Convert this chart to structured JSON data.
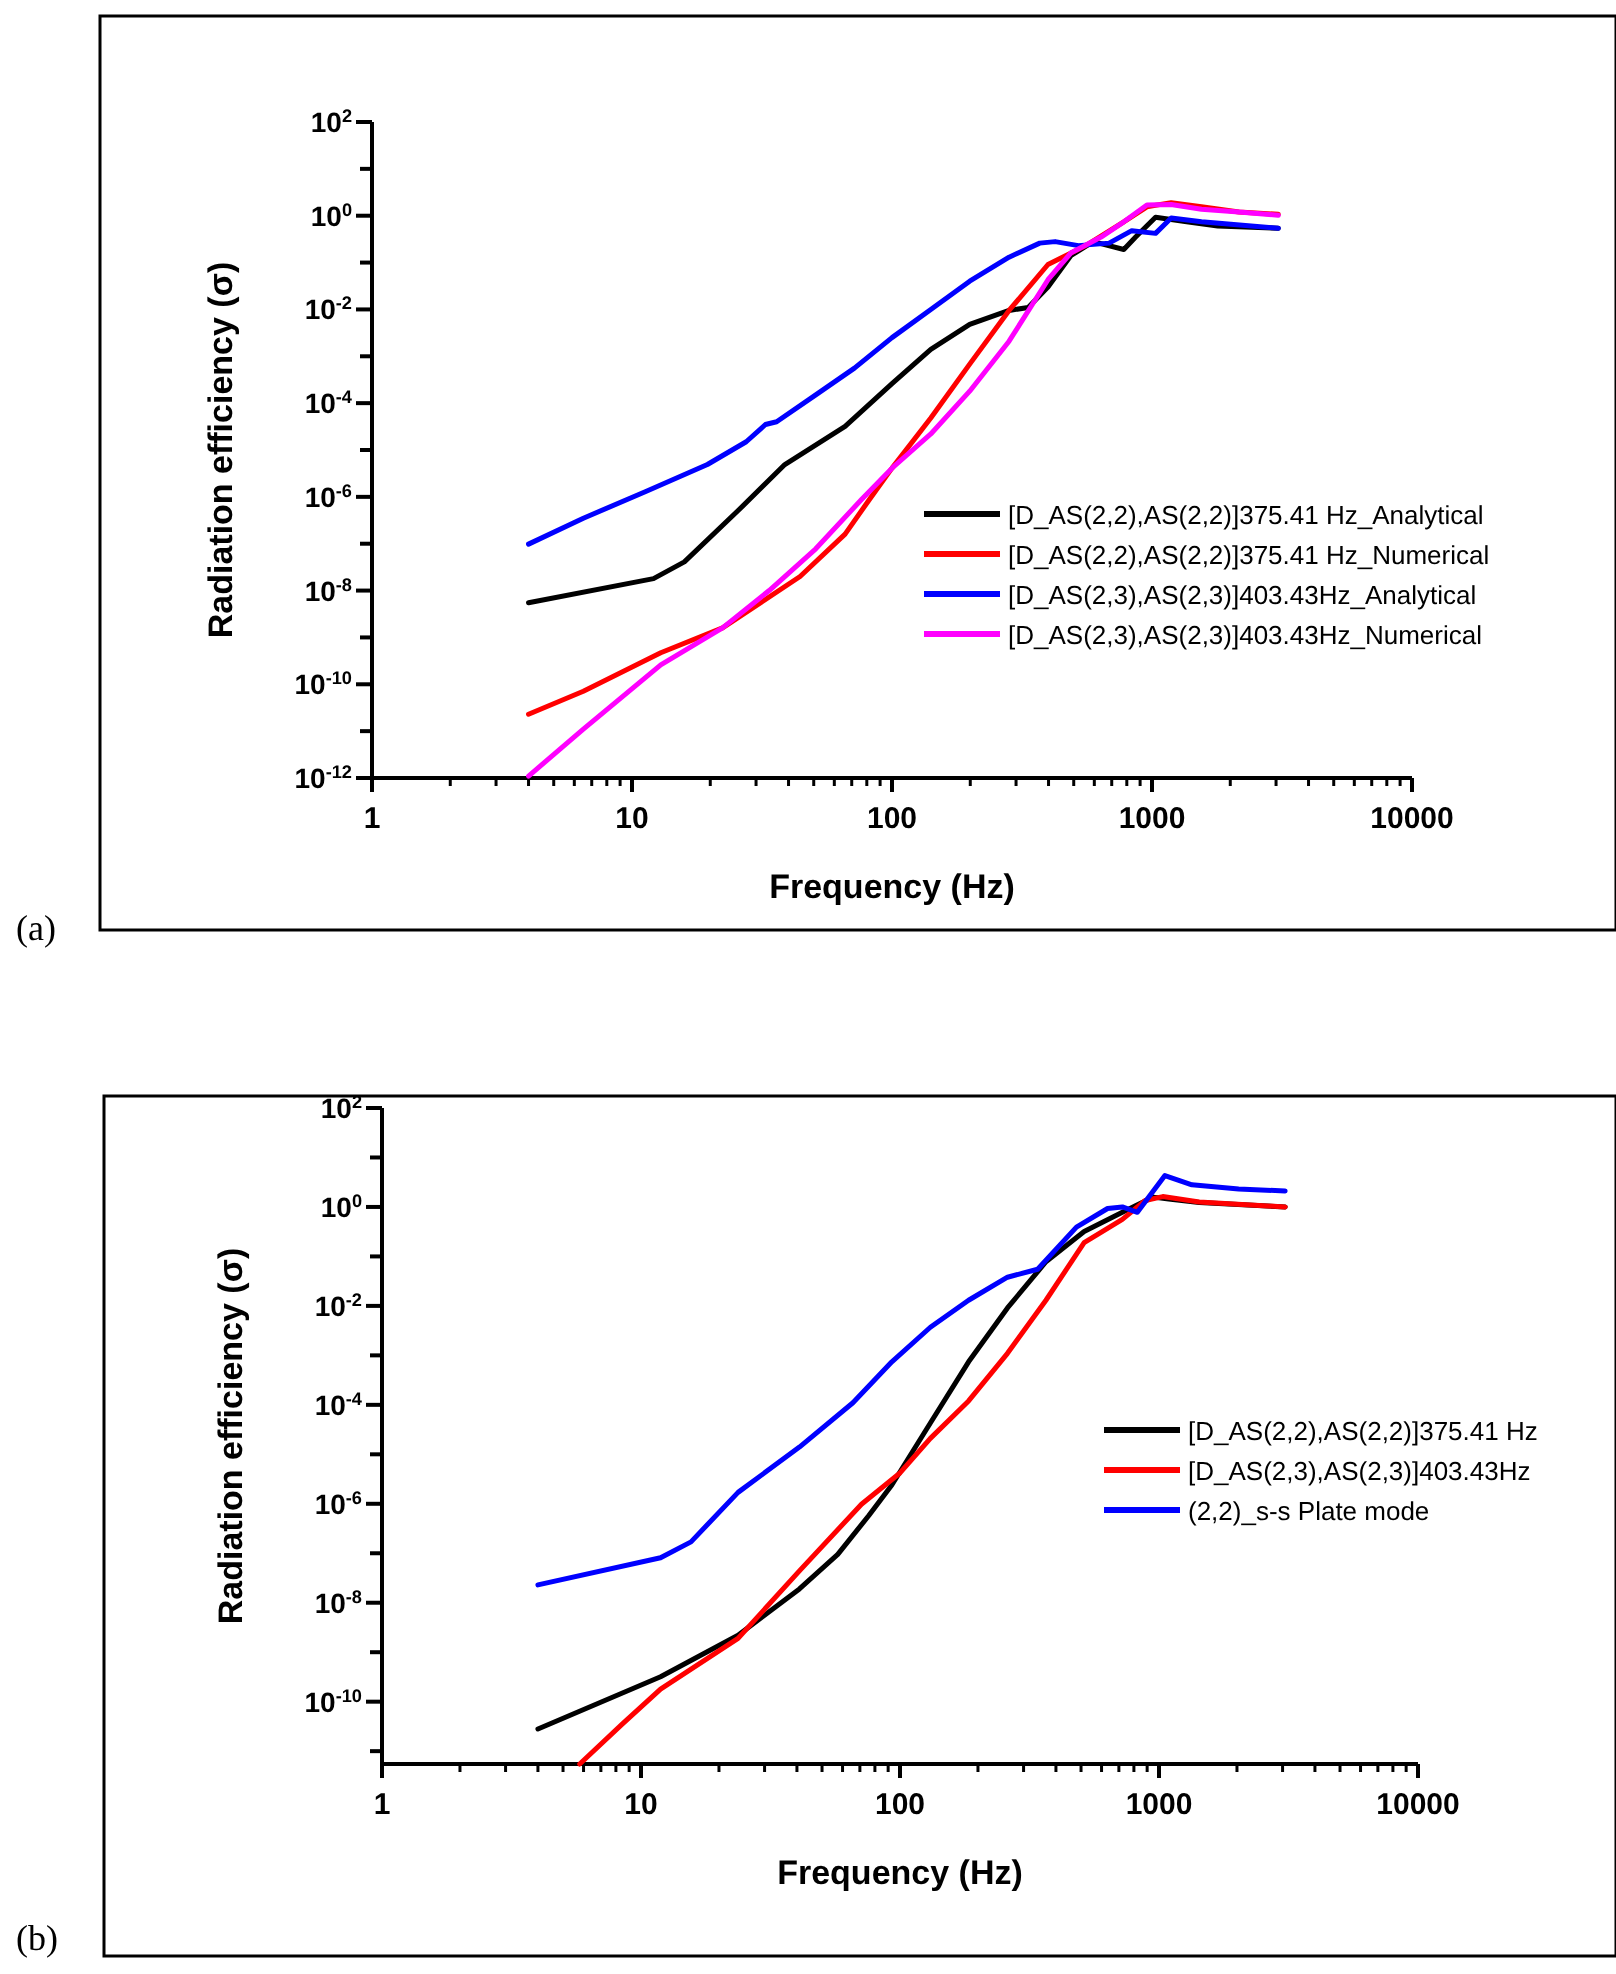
{
  "chart_data": [
    {
      "type": "line",
      "xlabel": "Frequency (Hz)",
      "ylabel": "Radiation efficiency (σ)",
      "log": "xy",
      "xlim": [
        1,
        10000
      ],
      "xticks": [
        1,
        10,
        100,
        1000,
        10000
      ],
      "ylim": [
        1e-12,
        100
      ],
      "yticks": [
        {
          "value": 1e-12,
          "label": "10$^{-12}$"
        },
        {
          "value": 1e-11,
          "label": null
        },
        {
          "value": 1e-10,
          "label": "10$^{-10}$"
        },
        {
          "value": 1e-09,
          "label": null
        },
        {
          "value": 1e-08,
          "label": "10$^{-8}$"
        },
        {
          "value": 1e-07,
          "label": null
        },
        {
          "value": 1e-06,
          "label": "10$^{-6}$"
        },
        {
          "value": 1e-05,
          "label": null
        },
        {
          "value": 0.0001,
          "label": "10$^{-4}$"
        },
        {
          "value": 0.001,
          "label": null
        },
        {
          "value": 0.01,
          "label": "10$^{-2}$"
        },
        {
          "value": 0.1,
          "label": null
        },
        {
          "value": 1,
          "label": "10$^{0}$"
        },
        {
          "value": 10,
          "label": null
        },
        {
          "value": 100,
          "label": "10$^{2}$"
        }
      ],
      "legend": "right",
      "grid": false,
      "marker": "none",
      "line_style": "solid",
      "annotations": [
        "(a)"
      ],
      "series": [
        {
          "name": "[D_AS(2,2),AS(2,2)]375.41 Hz_Analytical",
          "color": "#000000",
          "x": [
            4,
            12.1,
            15.9,
            25.6,
            38.7,
            66,
            100,
            141,
            199,
            282,
            334,
            398,
            487,
            594,
            779,
            865,
            1032,
            1360,
            1790,
            3060
          ],
          "values": [
            5.5e-09,
            1.8e-08,
            4.1e-08,
            5.1e-07,
            4.9e-06,
            3.2e-05,
            0.00026,
            0.0014,
            0.0048,
            0.0095,
            0.011,
            0.03,
            0.14,
            0.28,
            0.19,
            0.35,
            0.93,
            0.74,
            0.6,
            0.54
          ]
        },
        {
          "name": "[D_AS(2,2),AS(2,2)]375.41 Hz_Numerical",
          "color": "#ff0000",
          "x": [
            4,
            6.5,
            12.9,
            22.3,
            44.3,
            66,
            82,
            100,
            141,
            199,
            282,
            398,
            556,
            779,
            956,
            1185,
            1550,
            2160,
            3060
          ],
          "values": [
            2.3e-11,
            7.1e-11,
            4.7e-10,
            1.6e-09,
            2e-08,
            1.6e-07,
            8.9e-07,
            4.1e-06,
            4.8e-05,
            0.00068,
            0.0095,
            0.091,
            0.23,
            0.74,
            1.55,
            1.9,
            1.55,
            1.2,
            1.07
          ]
        },
        {
          "name": "[D_AS(2,3),AS(2,3)]403.43Hz_Analytical",
          "color": "#0000ff",
          "x": [
            4,
            6.5,
            11.3,
            19.5,
            27.5,
            32.6,
            36,
            50.9,
            71.7,
            100,
            141,
            199,
            282,
            370,
            424,
            521,
            684,
            836,
            1032,
            1185,
            1550,
            3060
          ],
          "values": [
            9.8e-08,
            3.5e-07,
            1.3e-06,
            4.9e-06,
            1.5e-05,
            3.5e-05,
            4e-05,
            0.00015,
            0.00056,
            0.0025,
            0.01,
            0.04,
            0.13,
            0.26,
            0.28,
            0.23,
            0.26,
            0.48,
            0.42,
            0.89,
            0.74,
            0.54
          ]
        },
        {
          "name": "[D_AS(2,3),AS(2,3)]403.43Hz_Numerical",
          "color": "#ff00ff",
          "x": [
            4,
            6.5,
            12.9,
            22.3,
            33.7,
            50.9,
            76.5,
            100,
            141,
            199,
            282,
            398,
            487,
            637,
            779,
            956,
            1185,
            1550,
            2160,
            3060
          ],
          "values": [
            1.1e-12,
            1.1e-11,
            2.6e-10,
            1.6e-09,
            1e-08,
            7.8e-08,
            8.9e-07,
            4.1e-06,
            2.2e-05,
            0.00018,
            0.0021,
            0.043,
            0.16,
            0.35,
            0.74,
            1.7,
            1.74,
            1.38,
            1.2,
            1.02
          ]
        }
      ]
    },
    {
      "type": "line",
      "xlabel": "Frequency (Hz)",
      "ylabel": "Radiation efficiency (σ)",
      "log": "xy",
      "xlim": [
        1,
        10000
      ],
      "xticks": [
        1,
        10,
        100,
        1000,
        10000
      ],
      "ylim": [
        5.5e-12,
        100
      ],
      "yticks": [
        {
          "value": 1e-11,
          "label": null
        },
        {
          "value": 1e-10,
          "label": "10$^{-10}$"
        },
        {
          "value": 1e-09,
          "label": null
        },
        {
          "value": 1e-08,
          "label": "10$^{-8}$"
        },
        {
          "value": 1e-07,
          "label": null
        },
        {
          "value": 1e-06,
          "label": "10$^{-6}$"
        },
        {
          "value": 1e-05,
          "label": null
        },
        {
          "value": 0.0001,
          "label": "10$^{-4}$"
        },
        {
          "value": 0.001,
          "label": null
        },
        {
          "value": 0.01,
          "label": "10$^{-2}$"
        },
        {
          "value": 0.1,
          "label": null
        },
        {
          "value": 1,
          "label": "10$^{0}$"
        },
        {
          "value": 10,
          "label": null
        },
        {
          "value": 100,
          "label": "10$^{2}$"
        }
      ],
      "legend": "right",
      "grid": false,
      "marker": "none",
      "line_style": "solid",
      "annotations": [
        "(b)"
      ],
      "series": [
        {
          "name": "[D_AS(2,2),AS(2,2)]375.41 Hz",
          "color": "#000000",
          "x": [
            4,
            11.9,
            23.7,
            40.9,
            57.5,
            75.8,
            93,
            131,
            184,
            260,
            366,
            514,
            722,
            951,
            1090,
            1430,
            3070
          ],
          "values": [
            2.8e-11,
            3.2e-10,
            2.2e-09,
            1.9e-08,
            9.5e-08,
            5.8e-07,
            2.4e-06,
            4.3e-05,
            0.00074,
            0.0091,
            0.078,
            0.32,
            0.78,
            1.58,
            1.45,
            1.23,
            1.0
          ]
        },
        {
          "name": "[D_AS(2,3),AS(2,3)]403.43Hz",
          "color": "#ff0000",
          "x": [
            5.8,
            8.5,
            11.9,
            23.7,
            40.9,
            71,
            100,
            131,
            184,
            260,
            366,
            514,
            722,
            885,
            1034,
            1430,
            3070
          ],
          "values": [
            5.5e-12,
            3.6e-11,
            1.8e-10,
            1.9e-09,
            4.4e-08,
            9.8e-07,
            4.2e-06,
            2.1e-05,
            0.00012,
            0.0011,
            0.013,
            0.19,
            0.56,
            1.35,
            1.62,
            1.26,
            1.0
          ]
        },
        {
          "name": "(2,2)_s-s Plate mode",
          "color": "#0000ff",
          "x": [
            4,
            11.9,
            15.6,
            23.7,
            40.9,
            65.8,
            93,
            131,
            184,
            260,
            340,
            480,
            633,
            722,
            825,
            1054,
            1340,
            2030,
            3070
          ],
          "values": [
            2.3e-08,
            8.1e-08,
            1.7e-07,
            1.7e-06,
            1.4e-05,
            0.00011,
            0.00074,
            0.0037,
            0.013,
            0.038,
            0.055,
            0.39,
            0.93,
            1.0,
            0.78,
            4.3,
            2.8,
            2.3,
            2.1
          ]
        }
      ]
    }
  ]
}
